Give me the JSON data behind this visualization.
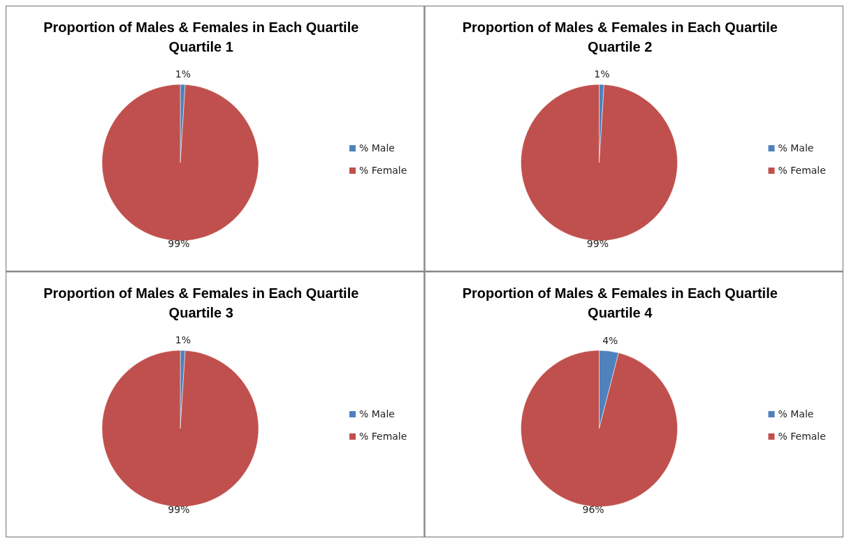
{
  "chart_data": [
    {
      "type": "pie",
      "title": "Proportion of Males & Females in Each Quartile",
      "subtitle": "Quartile 1",
      "categories": [
        "% Male",
        "% Female"
      ],
      "values": [
        1,
        99
      ],
      "value_labels": [
        "1%",
        "99%"
      ],
      "colors": [
        "#4f81bd",
        "#c0504d"
      ],
      "legend": "right"
    },
    {
      "type": "pie",
      "title": "Proportion of Males & Females in Each Quartile",
      "subtitle": "Quartile 2",
      "categories": [
        "% Male",
        "% Female"
      ],
      "values": [
        1,
        99
      ],
      "value_labels": [
        "1%",
        "99%"
      ],
      "colors": [
        "#4f81bd",
        "#c0504d"
      ],
      "legend": "right"
    },
    {
      "type": "pie",
      "title": "Proportion of Males & Females in Each Quartile",
      "subtitle": "Quartile 3",
      "categories": [
        "% Male",
        "% Female"
      ],
      "values": [
        1,
        99
      ],
      "value_labels": [
        "1%",
        "99%"
      ],
      "colors": [
        "#4f81bd",
        "#c0504d"
      ],
      "legend": "right"
    },
    {
      "type": "pie",
      "title": "Proportion of Males & Females in Each Quartile",
      "subtitle": "Quartile 4",
      "categories": [
        "% Male",
        "% Female"
      ],
      "values": [
        4,
        96
      ],
      "value_labels": [
        "4%",
        "96%"
      ],
      "colors": [
        "#4f81bd",
        "#c0504d"
      ],
      "legend": "right"
    }
  ]
}
